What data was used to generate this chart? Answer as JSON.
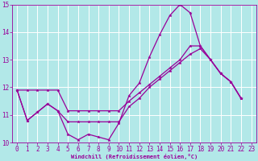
{
  "xlabel": "Windchill (Refroidissement éolien,°C)",
  "background_color": "#b2e8e8",
  "grid_color": "#ffffff",
  "line_color": "#990099",
  "xlim": [
    -0.5,
    23.5
  ],
  "ylim": [
    10,
    15
  ],
  "yticks": [
    10,
    11,
    12,
    13,
    14,
    15
  ],
  "xticks": [
    0,
    1,
    2,
    3,
    4,
    5,
    6,
    7,
    8,
    9,
    10,
    11,
    12,
    13,
    14,
    15,
    16,
    17,
    18,
    19,
    20,
    21,
    22,
    23
  ],
  "series1_x": [
    0,
    1,
    2,
    3,
    4,
    5,
    6,
    7,
    8,
    9,
    10,
    11,
    12,
    13,
    14,
    15,
    16,
    17,
    18,
    19,
    20,
    21,
    22
  ],
  "series1_y": [
    11.9,
    10.8,
    11.1,
    11.4,
    11.15,
    10.3,
    10.1,
    10.3,
    10.2,
    10.1,
    10.7,
    11.7,
    12.15,
    13.1,
    13.9,
    14.6,
    15.0,
    14.7,
    13.5,
    13.0,
    12.5,
    12.2,
    11.6
  ],
  "series2_x": [
    0,
    1,
    2,
    3,
    4,
    5,
    6,
    7,
    8,
    9,
    10,
    11,
    12,
    13,
    14,
    15,
    16,
    17,
    18,
    19,
    20,
    21,
    22
  ],
  "series2_y": [
    11.9,
    10.8,
    11.1,
    11.4,
    11.15,
    10.75,
    10.75,
    10.75,
    10.75,
    10.75,
    10.75,
    11.3,
    11.6,
    12.0,
    12.3,
    12.6,
    12.9,
    13.2,
    13.4,
    13.0,
    12.5,
    12.2,
    11.6
  ],
  "series3_x": [
    0,
    1,
    2,
    3,
    4,
    5,
    6,
    7,
    8,
    9,
    10,
    11,
    12,
    13,
    14,
    15,
    16,
    17,
    18,
    19,
    20,
    21,
    22
  ],
  "series3_y": [
    11.9,
    11.9,
    11.9,
    11.9,
    11.9,
    11.15,
    11.15,
    11.15,
    11.15,
    11.15,
    11.15,
    11.5,
    11.8,
    12.1,
    12.4,
    12.7,
    13.0,
    13.5,
    13.5,
    13.0,
    12.5,
    12.2,
    11.6
  ],
  "marker_size": 2.5,
  "line_width": 0.9,
  "xlabel_fontsize": 5.0,
  "tick_fontsize": 5.5
}
